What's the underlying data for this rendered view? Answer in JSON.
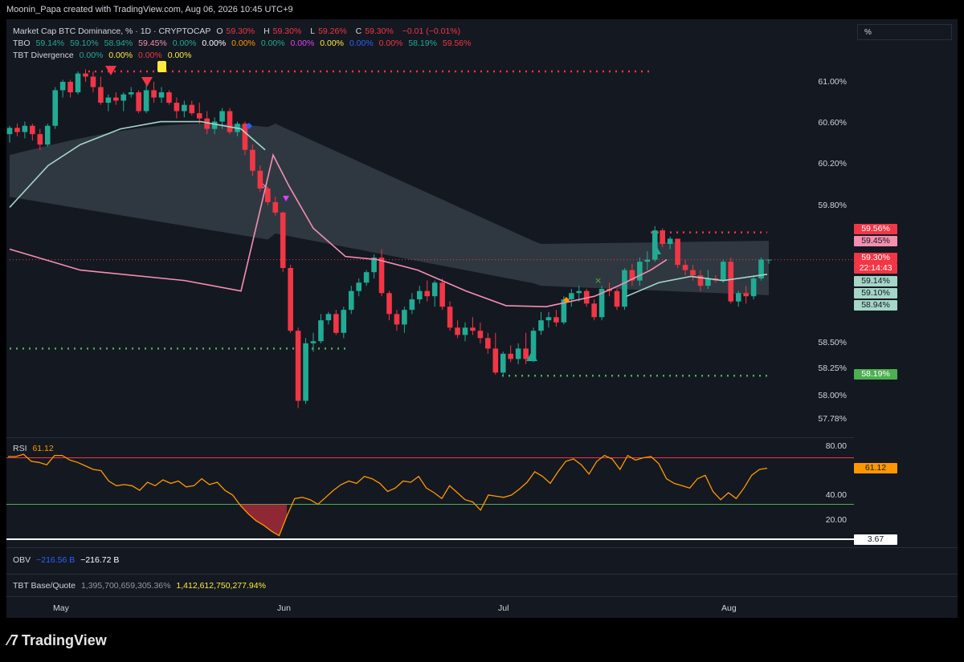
{
  "header": {
    "credit": "Moonin_Papa created with TradingView.com, Aug 06, 2026 10:45 UTC+9"
  },
  "legend": {
    "symbol": "Market Cap BTC Dominance, % · 1D · CRYPTOCAP",
    "ohlc": {
      "o_label": "O",
      "o": "59.30%",
      "h_label": "H",
      "h": "59.30%",
      "l_label": "L",
      "l": "59.26%",
      "c_label": "C",
      "c": "59.30%",
      "change": "−0.01 (−0.01%)"
    },
    "tbo": {
      "name": "TBO",
      "values": [
        "59.14%",
        "59.10%",
        "58.94%",
        "59.45%",
        "0.00%",
        "0.00%",
        "0.00%",
        "0.00%",
        "0.00%",
        "0.00%",
        "0.00%",
        "0.00%",
        "58.19%",
        "59.56%"
      ]
    },
    "tbt_div": {
      "name": "TBT Divergence",
      "values": [
        "0.00%",
        "0.00%",
        "0.00%",
        "0.00%"
      ]
    }
  },
  "unit_selector": "%",
  "price_axis": {
    "ticks": [
      "61.00%",
      "60.60%",
      "60.20%",
      "59.80%",
      "58.50%",
      "58.25%",
      "58.00%",
      "57.78%"
    ],
    "tags": {
      "t1": "59.56%",
      "t2": "59.45%",
      "t3a": "59.30%",
      "t3b": "22:14:43",
      "t4": "59.14%",
      "t5": "59.10%",
      "t6": "58.94%",
      "t7": "58.19%"
    },
    "colors": {
      "red": "#f23645",
      "pink": "#f48fb1",
      "green": "#22ab94",
      "bright_green": "#4caf50"
    }
  },
  "rsi": {
    "name": "RSI",
    "value": "61.12",
    "ticks": [
      "80.00",
      "40.00",
      "20.00"
    ],
    "tag_value": "61.12",
    "low_tag": "3.67",
    "values": [
      71,
      71,
      73,
      67,
      66,
      64,
      72,
      72,
      68,
      66,
      63,
      60,
      59,
      50,
      46,
      47,
      46,
      42,
      49,
      46,
      51,
      48,
      50,
      45,
      46,
      52,
      47,
      49,
      42,
      38,
      29,
      22,
      16,
      12,
      7,
      3,
      20,
      35,
      36,
      34,
      30,
      36,
      42,
      47,
      50,
      48,
      54,
      52,
      48,
      41,
      44,
      50,
      49,
      54,
      44,
      40,
      35,
      46,
      40,
      34,
      32,
      25,
      38,
      37,
      36,
      38,
      43,
      49,
      58,
      54,
      48,
      58,
      67,
      69,
      64,
      56,
      67,
      72,
      69,
      60,
      72,
      68,
      70,
      71,
      65,
      52,
      48,
      46,
      44,
      52,
      55,
      41,
      34,
      40,
      35,
      44,
      55,
      60,
      61
    ]
  },
  "obv": {
    "name": "OBV",
    "v1": "−216.56 B",
    "v2": "−216.72 B"
  },
  "tbt_bq": {
    "name": "TBT Base/Quote",
    "v1": "1,395,700,659,305.36%",
    "v2": "1,412,612,750,277.94%"
  },
  "time_axis": {
    "labels": [
      "May",
      "Jun",
      "Jul",
      "Aug"
    ]
  },
  "brand": "TradingView",
  "chart_data": {
    "type": "candlestick",
    "title": "Market Cap BTC Dominance, % · 1D · CRYPTOCAP",
    "ylim": [
      57.7,
      61.3
    ],
    "levels": {
      "resistance_top": 61.1,
      "resistance_mid": 59.56,
      "support_1": 58.19,
      "support_may": 58.45
    },
    "candles": [
      [
        60.5,
        60.58,
        60.42,
        60.56
      ],
      [
        60.56,
        60.6,
        60.48,
        60.52
      ],
      [
        60.52,
        60.62,
        60.46,
        60.58
      ],
      [
        60.58,
        60.6,
        60.44,
        60.5
      ],
      [
        60.5,
        60.55,
        60.35,
        60.4
      ],
      [
        60.4,
        60.6,
        60.38,
        60.58
      ],
      [
        60.58,
        60.95,
        60.55,
        60.92
      ],
      [
        60.92,
        61.02,
        60.85,
        61.0
      ],
      [
        61.0,
        61.02,
        60.85,
        60.9
      ],
      [
        60.9,
        61.1,
        60.88,
        61.08
      ],
      [
        61.08,
        61.12,
        61.0,
        61.05
      ],
      [
        61.05,
        61.1,
        60.9,
        60.95
      ],
      [
        60.95,
        61.05,
        60.78,
        60.8
      ],
      [
        60.8,
        60.88,
        60.72,
        60.85
      ],
      [
        60.85,
        60.9,
        60.78,
        60.82
      ],
      [
        60.82,
        60.9,
        60.72,
        60.88
      ],
      [
        60.88,
        60.95,
        60.85,
        60.9
      ],
      [
        60.9,
        60.92,
        60.7,
        60.72
      ],
      [
        60.72,
        60.98,
        60.7,
        60.92
      ],
      [
        60.92,
        61.0,
        60.8,
        60.85
      ],
      [
        60.85,
        60.95,
        60.8,
        60.9
      ],
      [
        60.9,
        60.92,
        60.78,
        60.8
      ],
      [
        60.8,
        60.85,
        60.65,
        60.72
      ],
      [
        60.72,
        60.82,
        60.66,
        60.78
      ],
      [
        60.78,
        60.82,
        60.68,
        60.7
      ],
      [
        60.7,
        60.8,
        60.6,
        60.65
      ],
      [
        60.65,
        60.72,
        60.5,
        60.55
      ],
      [
        60.55,
        60.66,
        60.5,
        60.62
      ],
      [
        60.62,
        60.75,
        60.55,
        60.72
      ],
      [
        60.72,
        60.75,
        60.5,
        60.52
      ],
      [
        60.52,
        60.62,
        60.48,
        60.6
      ],
      [
        60.6,
        60.62,
        60.3,
        60.35
      ],
      [
        60.35,
        60.4,
        60.1,
        60.15
      ],
      [
        60.15,
        60.2,
        59.95,
        59.98
      ],
      [
        59.98,
        60.0,
        59.82,
        59.85
      ],
      [
        59.85,
        59.9,
        59.72,
        59.75
      ],
      [
        59.75,
        59.76,
        59.18,
        59.22
      ],
      [
        59.22,
        59.25,
        58.6,
        58.62
      ],
      [
        58.62,
        58.65,
        57.88,
        57.95
      ],
      [
        57.95,
        58.55,
        57.92,
        58.5
      ],
      [
        58.5,
        58.6,
        58.42,
        58.52
      ],
      [
        58.52,
        58.78,
        58.5,
        58.72
      ],
      [
        58.72,
        58.8,
        58.68,
        58.78
      ],
      [
        58.78,
        58.82,
        58.58,
        58.6
      ],
      [
        58.6,
        58.85,
        58.55,
        58.82
      ],
      [
        58.82,
        59.05,
        58.78,
        59.0
      ],
      [
        59.0,
        59.12,
        58.95,
        59.08
      ],
      [
        59.08,
        59.2,
        59.05,
        59.18
      ],
      [
        59.18,
        59.35,
        59.12,
        59.32
      ],
      [
        59.32,
        59.4,
        58.95,
        58.98
      ],
      [
        58.98,
        59.0,
        58.72,
        58.78
      ],
      [
        58.78,
        58.82,
        58.62,
        58.68
      ],
      [
        58.68,
        58.85,
        58.6,
        58.82
      ],
      [
        58.82,
        58.98,
        58.78,
        58.92
      ],
      [
        58.92,
        59.05,
        58.88,
        59.0
      ],
      [
        59.0,
        59.1,
        58.9,
        58.95
      ],
      [
        58.95,
        59.1,
        58.85,
        59.08
      ],
      [
        59.08,
        59.12,
        58.82,
        58.85
      ],
      [
        58.85,
        58.9,
        58.62,
        58.65
      ],
      [
        58.65,
        58.72,
        58.55,
        58.58
      ],
      [
        58.58,
        58.7,
        58.52,
        58.65
      ],
      [
        58.65,
        58.75,
        58.58,
        58.62
      ],
      [
        58.62,
        58.7,
        58.5,
        58.55
      ],
      [
        58.55,
        58.6,
        58.4,
        58.45
      ],
      [
        58.45,
        58.6,
        58.2,
        58.22
      ],
      [
        58.22,
        58.42,
        58.18,
        58.4
      ],
      [
        58.4,
        58.48,
        58.32,
        58.35
      ],
      [
        58.35,
        58.5,
        58.3,
        58.45
      ],
      [
        58.45,
        58.6,
        58.3,
        58.35
      ],
      [
        58.35,
        58.65,
        58.32,
        58.62
      ],
      [
        58.62,
        58.8,
        58.58,
        58.72
      ],
      [
        58.72,
        58.8,
        58.65,
        58.75
      ],
      [
        58.75,
        58.82,
        58.66,
        58.7
      ],
      [
        58.7,
        58.95,
        58.68,
        58.92
      ],
      [
        58.92,
        59.02,
        58.85,
        58.98
      ],
      [
        58.98,
        59.05,
        58.9,
        59.0
      ],
      [
        59.0,
        59.02,
        58.85,
        58.88
      ],
      [
        58.88,
        58.92,
        58.72,
        58.75
      ],
      [
        58.75,
        59.05,
        58.72,
        59.02
      ],
      [
        59.02,
        59.08,
        58.95,
        59.0
      ],
      [
        59.0,
        59.02,
        58.82,
        58.85
      ],
      [
        58.85,
        59.22,
        58.82,
        59.2
      ],
      [
        59.2,
        59.26,
        59.05,
        59.1
      ],
      [
        59.1,
        59.32,
        59.05,
        59.28
      ],
      [
        59.28,
        59.38,
        59.2,
        59.3
      ],
      [
        59.3,
        59.62,
        59.28,
        59.58
      ],
      [
        59.58,
        59.6,
        59.42,
        59.45
      ],
      [
        59.45,
        59.52,
        59.4,
        59.5
      ],
      [
        59.5,
        59.5,
        59.22,
        59.25
      ],
      [
        59.25,
        59.3,
        59.15,
        59.2
      ],
      [
        59.2,
        59.25,
        59.1,
        59.15
      ],
      [
        59.15,
        59.2,
        59.0,
        59.05
      ],
      [
        59.05,
        59.2,
        59.02,
        59.12
      ],
      [
        59.12,
        59.15,
        59.08,
        59.1
      ],
      [
        59.1,
        59.3,
        59.08,
        59.28
      ],
      [
        59.28,
        59.32,
        58.88,
        58.9
      ],
      [
        58.9,
        59.0,
        58.85,
        58.98
      ],
      [
        58.98,
        59.05,
        58.88,
        58.95
      ],
      [
        58.95,
        59.15,
        58.92,
        59.12
      ],
      [
        59.12,
        59.32,
        59.1,
        59.3
      ],
      [
        59.3,
        59.3,
        59.26,
        59.3
      ]
    ],
    "ema_pink": [
      59.0,
      58.95,
      59.0,
      58.98,
      58.95,
      58.9,
      58.85,
      58.8,
      58.78,
      58.75,
      58.72,
      58.7,
      58.7,
      58.72,
      58.75,
      58.8,
      58.85,
      58.9
    ],
    "ema_teal": [
      59.0,
      59.05,
      59.08,
      59.1,
      59.12,
      59.14
    ]
  }
}
